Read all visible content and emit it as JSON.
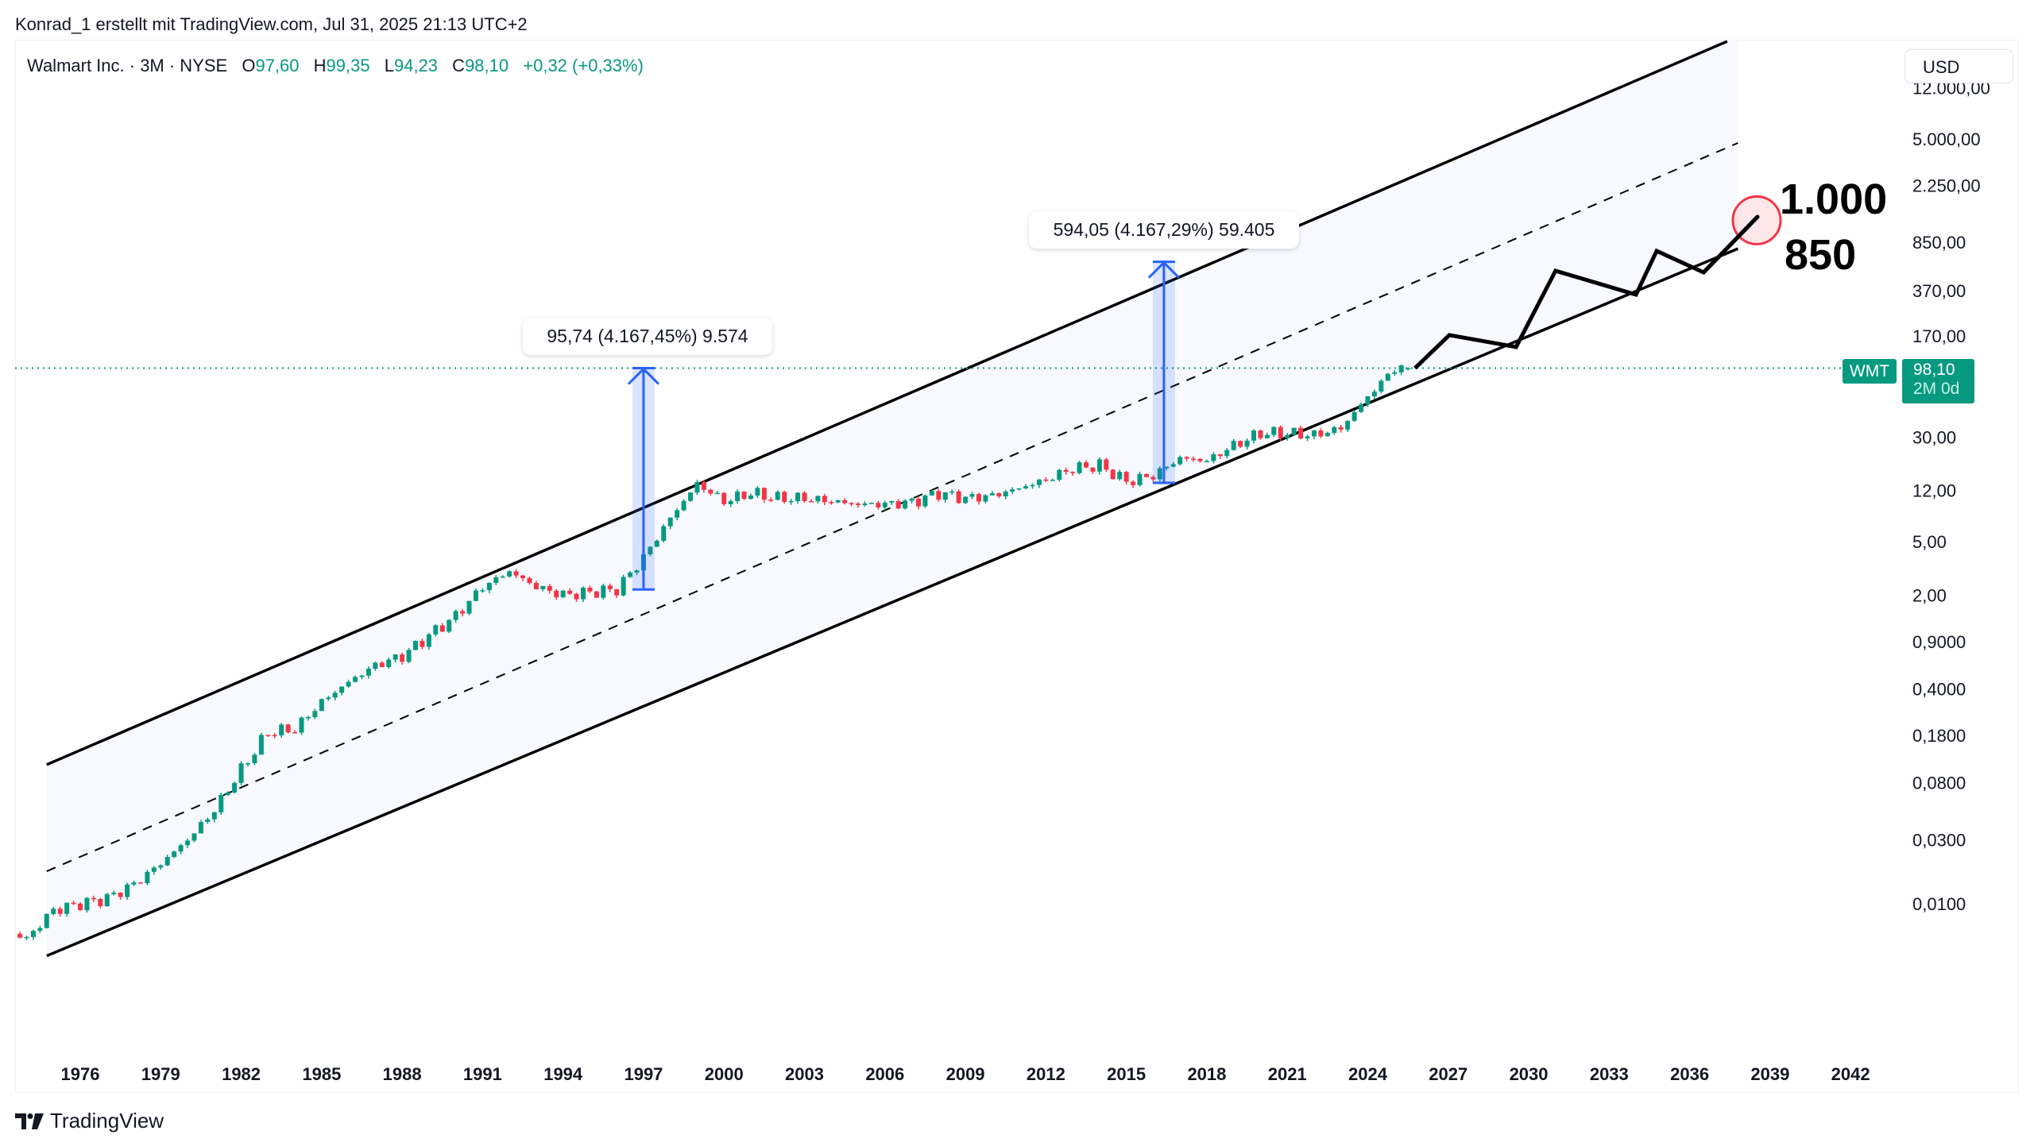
{
  "credit": "Konrad_1 erstellt mit TradingView.com, Jul 31, 2025 21:13 UTC+2",
  "legend": {
    "symbol": "Walmart Inc. · 3M · NYSE",
    "o_label": "O",
    "o": "97,60",
    "h_label": "H",
    "h": "99,35",
    "l_label": "L",
    "l": "94,23",
    "c_label": "C",
    "c": "98,10",
    "change": "+0,32 (+0,33%)"
  },
  "currency": "USD",
  "price_label": {
    "ticker": "WMT",
    "price": "98,10",
    "countdown": "2M 0d"
  },
  "brand": "TradingView",
  "colors": {
    "up": "#089981",
    "down": "#F23645",
    "measure": "#2962FF",
    "target_circle": "#F23645",
    "channel_fill": "#F7F9FF"
  },
  "chart_data": {
    "type": "candlestick",
    "y_scale": "log",
    "interval": "3M",
    "y_ticks": [
      {
        "value": 12000,
        "label": "12.000,00"
      },
      {
        "value": 5000,
        "label": "5.000,00"
      },
      {
        "value": 2250,
        "label": "2.250,00"
      },
      {
        "value": 850,
        "label": "850,00"
      },
      {
        "value": 370,
        "label": "370,00"
      },
      {
        "value": 170,
        "label": "170,00"
      },
      {
        "value": 30,
        "label": "30,00"
      },
      {
        "value": 12,
        "label": "12,00"
      },
      {
        "value": 5,
        "label": "5,00"
      },
      {
        "value": 2,
        "label": "2,00"
      },
      {
        "value": 0.9,
        "label": "0,9000"
      },
      {
        "value": 0.4,
        "label": "0,4000"
      },
      {
        "value": 0.18,
        "label": "0,1800"
      },
      {
        "value": 0.08,
        "label": "0,0800"
      },
      {
        "value": 0.03,
        "label": "0,0300"
      },
      {
        "value": 0.01,
        "label": "0,0100"
      }
    ],
    "x_ticks": [
      "1976",
      "1979",
      "1982",
      "1985",
      "1988",
      "1991",
      "1994",
      "1997",
      "2000",
      "2003",
      "2006",
      "2009",
      "2012",
      "2015",
      "2018",
      "2021",
      "2024",
      "2027",
      "2030",
      "2033",
      "2036",
      "2039",
      "2042"
    ],
    "approx_year_closes": {
      "years": [
        1973,
        1974,
        1975,
        1976,
        1977,
        1978,
        1979,
        1980,
        1981,
        1982,
        1983,
        1984,
        1985,
        1986,
        1987,
        1988,
        1989,
        1990,
        1991,
        1992,
        1993,
        1994,
        1995,
        1996,
        1997,
        1998,
        1999,
        2000,
        2001,
        2002,
        2003,
        2004,
        2005,
        2006,
        2007,
        2008,
        2009,
        2010,
        2011,
        2012,
        2013,
        2014,
        2015,
        2016,
        2017,
        2018,
        2019,
        2020,
        2021,
        2022,
        2023,
        2024,
        2025
      ],
      "values": [
        0.0065,
        0.0055,
        0.009,
        0.01,
        0.011,
        0.014,
        0.02,
        0.03,
        0.05,
        0.1,
        0.19,
        0.2,
        0.32,
        0.45,
        0.6,
        0.7,
        1.0,
        1.4,
        2.3,
        3.0,
        2.3,
        2.0,
        2.1,
        2.2,
        3.8,
        7.5,
        13.5,
        10,
        11.5,
        10.5,
        10.5,
        10,
        9.5,
        9.5,
        9.8,
        11.5,
        10.5,
        11,
        12.5,
        14.5,
        17.5,
        18.5,
        14,
        15.5,
        21,
        20,
        26,
        32,
        32,
        31,
        35,
        60,
        98.1
      ]
    },
    "last_candle": {
      "open": 97.6,
      "high": 99.35,
      "low": 94.23,
      "close": 98.1
    },
    "last_price": 98.1,
    "channel": {
      "upper": [
        [
          1974.75,
          0.109
        ],
        [
          2037.4,
          26700
        ]
      ],
      "middle": [
        [
          1974.75,
          0.0175
        ],
        [
          2037.8,
          4670
        ]
      ],
      "lower": [
        [
          1974.75,
          0.0041
        ],
        [
          2037.8,
          762
        ]
      ]
    },
    "measurements": [
      {
        "year": 1997.0,
        "from": 2.2,
        "to": 98.1,
        "label": "95,74 (4.167,45%) 9.574"
      },
      {
        "year": 2016.4,
        "from": 13.7,
        "to": 608,
        "label": "594,05 (4.167,29%) 59.405"
      }
    ],
    "projection": [
      [
        2025.76,
        98
      ],
      [
        2027.04,
        173
      ],
      [
        2029.53,
        141
      ],
      [
        2031.0,
        521
      ],
      [
        2034.0,
        346
      ],
      [
        2034.77,
        733
      ],
      [
        2036.52,
        507
      ],
      [
        2038.53,
        1315
      ]
    ],
    "target_circle": [
      2038.5,
      1240
    ],
    "targets": [
      "1.000",
      "850"
    ]
  }
}
